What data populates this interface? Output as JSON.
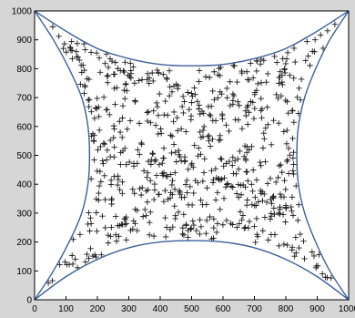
{
  "chart_data": {
    "type": "scatter",
    "title": "",
    "xlabel": "",
    "ylabel": "",
    "xlim": [
      0,
      1000
    ],
    "ylim": [
      0,
      1000
    ],
    "x_ticks": [
      0,
      100,
      200,
      300,
      400,
      500,
      600,
      700,
      800,
      900,
      1000
    ],
    "y_ticks": [
      0,
      100,
      200,
      300,
      400,
      500,
      600,
      700,
      800,
      900,
      1000
    ],
    "grid": false,
    "marker": "+",
    "marker_count_estimate": 700,
    "boundary": {
      "description": "four concave curved edges joining the plot corners",
      "top": [
        [
          0,
          1000
        ],
        [
          100,
          930
        ],
        [
          200,
          870
        ],
        [
          300,
          835
        ],
        [
          400,
          815
        ],
        [
          500,
          810
        ],
        [
          600,
          815
        ],
        [
          700,
          835
        ],
        [
          800,
          870
        ],
        [
          900,
          930
        ],
        [
          1000,
          1000
        ]
      ],
      "bottom": [
        [
          0,
          0
        ],
        [
          100,
          80
        ],
        [
          200,
          140
        ],
        [
          300,
          180
        ],
        [
          400,
          200
        ],
        [
          500,
          205
        ],
        [
          600,
          200
        ],
        [
          700,
          180
        ],
        [
          800,
          140
        ],
        [
          900,
          80
        ],
        [
          1000,
          0
        ]
      ],
      "left": [
        [
          0,
          0
        ],
        [
          60,
          100
        ],
        [
          110,
          200
        ],
        [
          150,
          300
        ],
        [
          170,
          400
        ],
        [
          175,
          500
        ],
        [
          170,
          600
        ],
        [
          150,
          700
        ],
        [
          110,
          800
        ],
        [
          60,
          900
        ],
        [
          0,
          1000
        ]
      ],
      "right": [
        [
          1000,
          0
        ],
        [
          940,
          100
        ],
        [
          895,
          200
        ],
        [
          860,
          300
        ],
        [
          840,
          400
        ],
        [
          835,
          500
        ],
        [
          840,
          600
        ],
        [
          860,
          700
        ],
        [
          895,
          800
        ],
        [
          940,
          900
        ],
        [
          1000,
          1000
        ]
      ]
    },
    "colors": {
      "background": "#d6d6d6",
      "plot_area": "#ffffff",
      "curve": "#3a5f9a",
      "marker": "#1a1a1a",
      "axis": "#000000"
    }
  }
}
